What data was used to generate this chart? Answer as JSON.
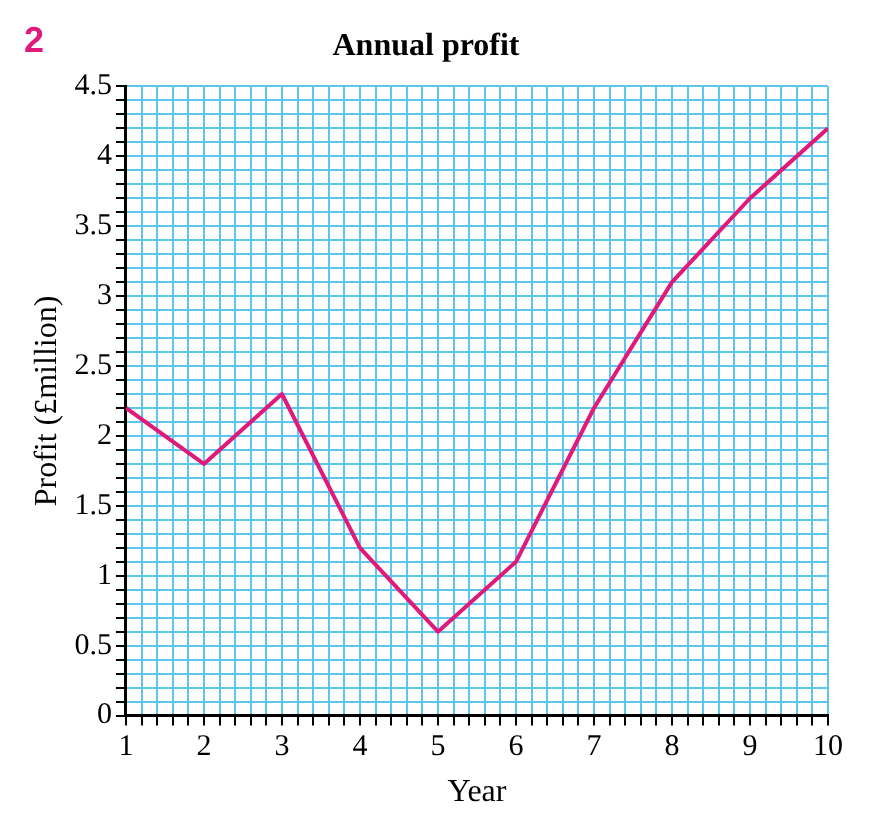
{
  "chart_data": {
    "type": "line",
    "title": "Annual profit",
    "xlabel": "Year",
    "ylabel": "Profit (£million)",
    "annotations": [
      "2"
    ],
    "x": [
      1,
      2,
      3,
      4,
      5,
      6,
      7,
      8,
      9,
      10
    ],
    "series": [
      {
        "color": "#e0197a",
        "values": [
          2.2,
          1.8,
          2.3,
          1.2,
          0.6,
          1.1,
          2.2,
          3.1,
          3.7,
          4.2
        ]
      }
    ],
    "xlim": [
      1,
      10
    ],
    "ylim": [
      0,
      4.5
    ],
    "xticks": [
      1,
      {
        "value": 1.2,
        "label": null
      },
      {
        "value": 1.4,
        "label": null
      },
      {
        "value": 1.6,
        "label": null
      },
      {
        "value": 1.8,
        "label": null
      },
      2,
      {
        "value": 2.2,
        "label": null
      },
      {
        "value": 2.4,
        "label": null
      },
      {
        "value": 2.6,
        "label": null
      },
      {
        "value": 2.8,
        "label": null
      },
      3,
      {
        "value": 3.2,
        "label": null
      },
      {
        "value": 3.4,
        "label": null
      },
      {
        "value": 3.6,
        "label": null
      },
      {
        "value": 3.8,
        "label": null
      },
      4,
      {
        "value": 4.2,
        "label": null
      },
      {
        "value": 4.4,
        "label": null
      },
      {
        "value": 4.6,
        "label": null
      },
      {
        "value": 4.8,
        "label": null
      },
      5,
      {
        "value": 5.2,
        "label": null
      },
      {
        "value": 5.4,
        "label": null
      },
      {
        "value": 5.6,
        "label": null
      },
      {
        "value": 5.8,
        "label": null
      },
      6,
      {
        "value": 6.2,
        "label": null
      },
      {
        "value": 6.4,
        "label": null
      },
      {
        "value": 6.6,
        "label": null
      },
      {
        "value": 6.8,
        "label": null
      },
      7,
      {
        "value": 7.2,
        "label": null
      },
      {
        "value": 7.4,
        "label": null
      },
      {
        "value": 7.6,
        "label": null
      },
      {
        "value": 7.8,
        "label": null
      },
      8,
      {
        "value": 8.2,
        "label": null
      },
      {
        "value": 8.4,
        "label": null
      },
      {
        "value": 8.6,
        "label": null
      },
      {
        "value": 8.8,
        "label": null
      },
      9,
      {
        "value": 9.2,
        "label": null
      },
      {
        "value": 9.4,
        "label": null
      },
      {
        "value": 9.6,
        "label": null
      },
      {
        "value": 9.8,
        "label": null
      },
      10
    ],
    "yticks": [
      0,
      {
        "value": 0.1,
        "label": null
      },
      {
        "value": 0.2,
        "label": null
      },
      {
        "value": 0.3,
        "label": null
      },
      {
        "value": 0.4,
        "label": null
      },
      0.5,
      {
        "value": 0.6,
        "label": null
      },
      {
        "value": 0.7,
        "label": null
      },
      {
        "value": 0.8,
        "label": null
      },
      {
        "value": 0.9,
        "label": null
      },
      1,
      {
        "value": 1.1,
        "label": null
      },
      {
        "value": 1.2,
        "label": null
      },
      {
        "value": 1.3,
        "label": null
      },
      {
        "value": 1.4,
        "label": null
      },
      1.5,
      {
        "value": 1.6,
        "label": null
      },
      {
        "value": 1.7,
        "label": null
      },
      {
        "value": 1.8,
        "label": null
      },
      {
        "value": 1.9,
        "label": null
      },
      2,
      {
        "value": 2.1,
        "label": null
      },
      {
        "value": 2.2,
        "label": null
      },
      {
        "value": 2.3,
        "label": null
      },
      {
        "value": 2.4,
        "label": null
      },
      2.5,
      {
        "value": 2.6,
        "label": null
      },
      {
        "value": 2.7,
        "label": null
      },
      {
        "value": 2.8,
        "label": null
      },
      {
        "value": 2.9,
        "label": null
      },
      3,
      {
        "value": 3.1,
        "label": null
      },
      {
        "value": 3.2,
        "label": null
      },
      {
        "value": 3.3,
        "label": null
      },
      {
        "value": 3.4,
        "label": null
      },
      3.5,
      {
        "value": 3.6,
        "label": null
      },
      {
        "value": 3.7,
        "label": null
      },
      {
        "value": 3.8,
        "label": null
      },
      {
        "value": 3.9,
        "label": null
      },
      4,
      {
        "value": 4.1,
        "label": null
      },
      {
        "value": 4.2,
        "label": null
      },
      {
        "value": 4.3,
        "label": null
      },
      {
        "value": 4.4,
        "label": null
      },
      4.5
    ],
    "grid": true,
    "legend": false,
    "marker": "none",
    "line_style": "solid"
  }
}
